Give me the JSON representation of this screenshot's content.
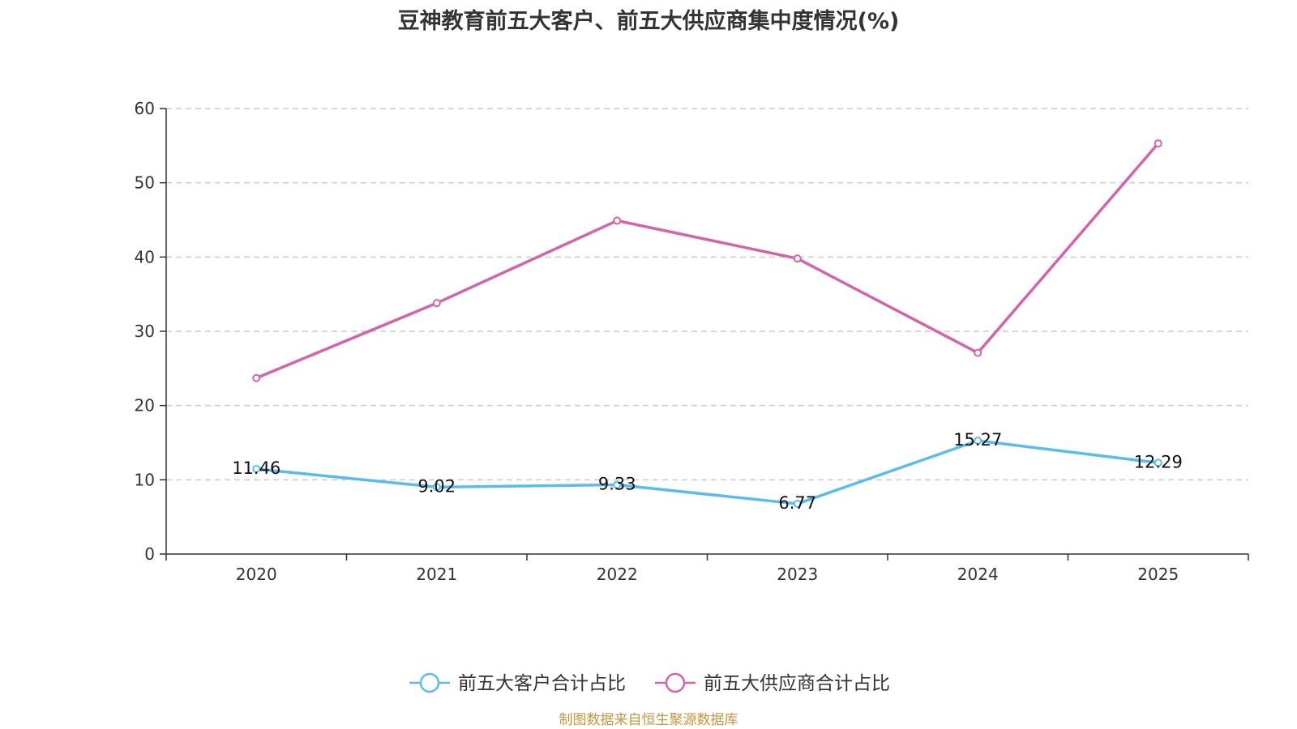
{
  "chart_data": {
    "type": "line",
    "title": "豆神教育前五大客户、前五大供应商集中度情况(%)",
    "categories": [
      "2020",
      "2021",
      "2022",
      "2023",
      "2024",
      "2025"
    ],
    "ylim": [
      0,
      60
    ],
    "yticks": [
      0,
      10,
      20,
      30,
      40,
      50,
      60
    ],
    "grid": true,
    "legend_position": "bottom-center",
    "series": [
      {
        "name": "前五大客户合计占比",
        "color": "#5bbcec",
        "values": [
          11.46,
          9.02,
          9.33,
          6.77,
          15.27,
          12.29
        ],
        "show_labels": true
      },
      {
        "name": "前五大供应商合计占比",
        "color": "#d264ac",
        "values": [
          23.7,
          33.8,
          44.9,
          39.8,
          27.1,
          55.3
        ],
        "show_labels": false
      }
    ],
    "source": "制图数据来自恒生聚源数据库"
  }
}
